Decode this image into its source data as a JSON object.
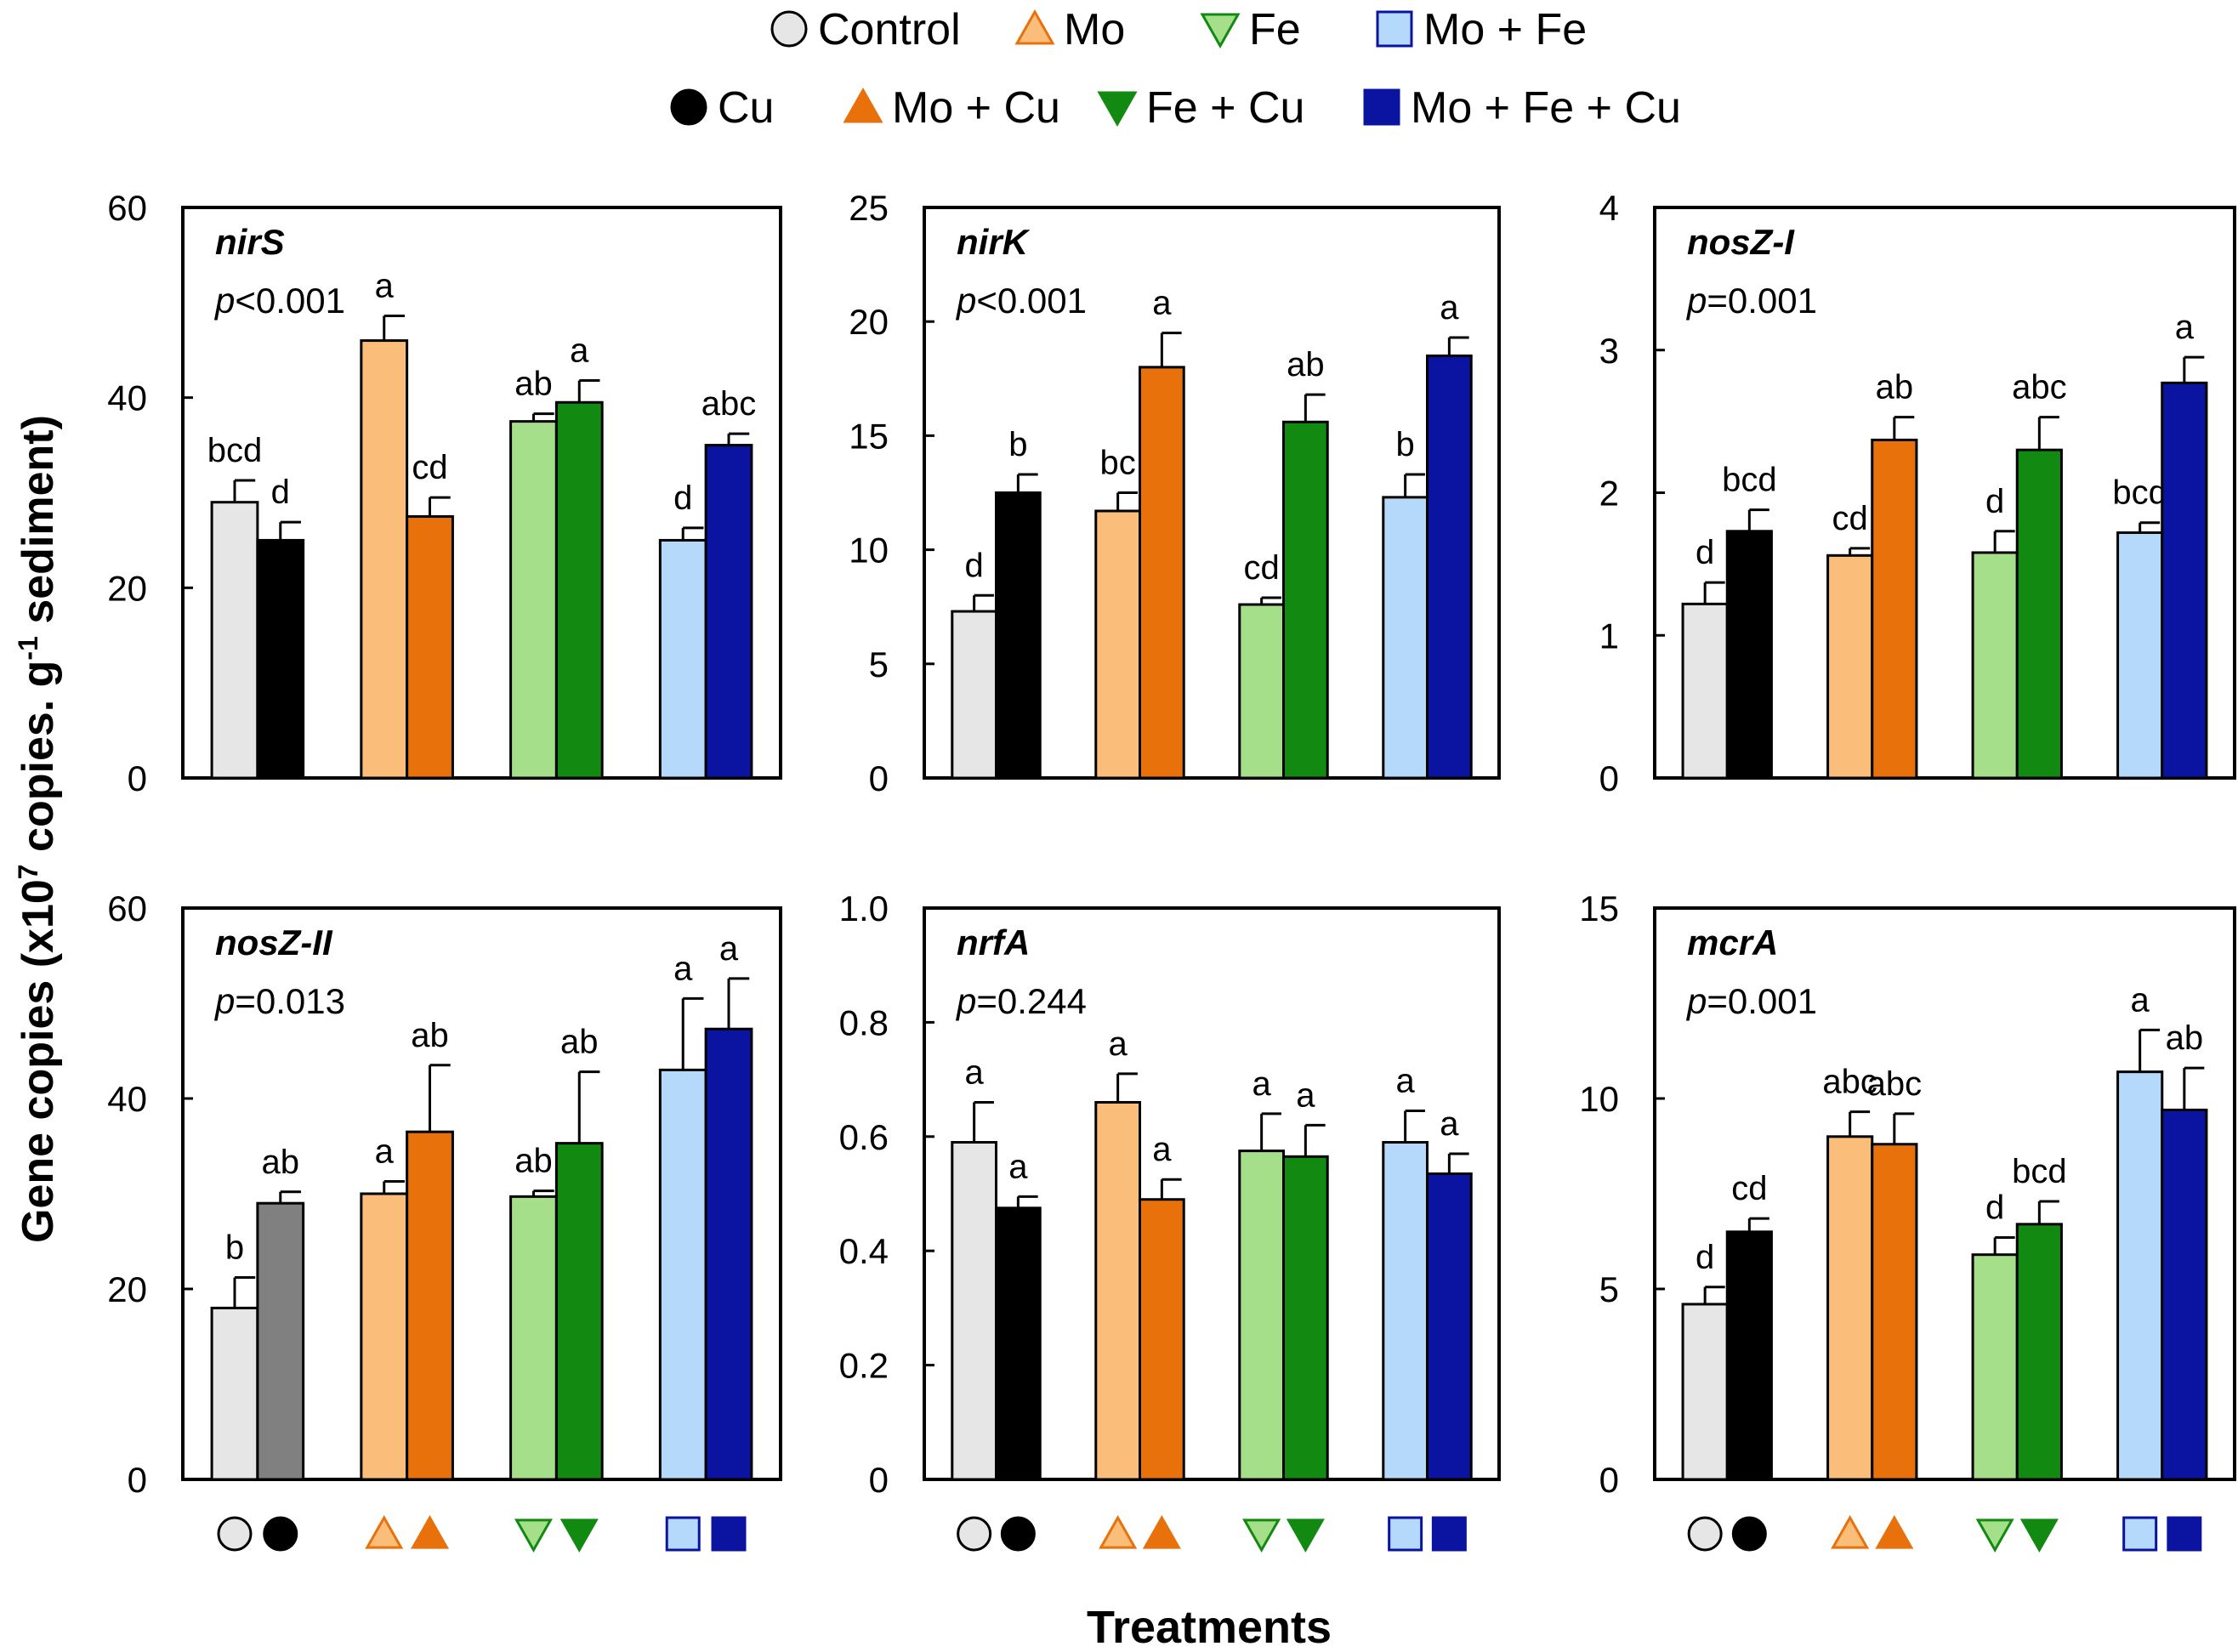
{
  "legend": {
    "rows": [
      [
        {
          "label": "Control",
          "marker": "circle-open",
          "color": "#e6e6e6",
          "edge": "#000000"
        },
        {
          "label": "Mo",
          "marker": "triangle-up-open",
          "color": "#fbbd7a",
          "edge": "#e8710c"
        },
        {
          "label": "Fe",
          "marker": "triangle-down-open",
          "color": "#a6df89",
          "edge": "#128a12"
        },
        {
          "label": "Mo + Fe",
          "marker": "square-open",
          "color": "#b5d9fb",
          "edge": "#0b14a0"
        }
      ],
      [
        {
          "label": "Cu",
          "marker": "circle-filled",
          "color": "#000000",
          "edge": "#000000"
        },
        {
          "label": "Mo + Cu",
          "marker": "triangle-up-filled",
          "color": "#e8710c",
          "edge": "#e8710c"
        },
        {
          "label": "Fe + Cu",
          "marker": "triangle-down-filled",
          "color": "#128a12",
          "edge": "#128a12"
        },
        {
          "label": "Mo + Fe + Cu",
          "marker": "square-filled",
          "color": "#0b14a0",
          "edge": "#0b14a0"
        }
      ]
    ]
  },
  "axes": {
    "ylabel_main": "Gene copies (x10",
    "ylabel_sup": "7",
    "ylabel_mid": " copies. g",
    "ylabel_sup2": "-1",
    "ylabel_end": " sediment)",
    "xlabel": "Treatments"
  },
  "colors": {
    "control": "#e6e6e6",
    "cu": "#000000",
    "cu_nosZII": "#808080",
    "mo": "#fbbd7a",
    "mocu": "#e8710c",
    "fe": "#a6df89",
    "fecu": "#128a12",
    "mofe": "#b5d9fb",
    "mofecu": "#0b14a0"
  },
  "chart_data": [
    {
      "type": "bar",
      "gene": "nirS",
      "pvalue_prefix": "p",
      "pvalue_rest": "<0.001",
      "ylim": [
        0,
        60
      ],
      "yticks": [
        0,
        20,
        40,
        60
      ],
      "ytick_labels": [
        "0",
        "20",
        "40",
        "60"
      ],
      "categories": [
        "Control",
        "Cu",
        "Mo",
        "Mo + Cu",
        "Fe",
        "Fe + Cu",
        "Mo + Fe",
        "Mo + Fe + Cu"
      ],
      "values": [
        29,
        25,
        46,
        27.5,
        37.5,
        39.5,
        25,
        35
      ],
      "errors": [
        2.3,
        1.9,
        2.6,
        2.0,
        0.8,
        2.3,
        1.3,
        1.2
      ],
      "letters": [
        "bcd",
        "d",
        "a",
        "cd",
        "ab",
        "a",
        "d",
        "abc"
      ],
      "colors": [
        "#e6e6e6",
        "#000000",
        "#fbbd7a",
        "#e8710c",
        "#a6df89",
        "#128a12",
        "#b5d9fb",
        "#0b14a0"
      ]
    },
    {
      "type": "bar",
      "gene": "nirK",
      "pvalue_prefix": "p",
      "pvalue_rest": "<0.001",
      "ylim": [
        0,
        25
      ],
      "yticks": [
        0,
        5,
        10,
        15,
        20,
        25
      ],
      "ytick_labels": [
        "0",
        "5",
        "10",
        "15",
        "20",
        "25"
      ],
      "categories": [
        "Control",
        "Cu",
        "Mo",
        "Mo + Cu",
        "Fe",
        "Fe + Cu",
        "Mo + Fe",
        "Mo + Fe + Cu"
      ],
      "values": [
        7.3,
        12.5,
        11.7,
        18,
        7.6,
        15.6,
        12.3,
        18.5
      ],
      "errors": [
        0.7,
        0.8,
        0.8,
        1.5,
        0.3,
        1.2,
        1.0,
        0.8
      ],
      "letters": [
        "d",
        "b",
        "bc",
        "a",
        "cd",
        "ab",
        "b",
        "a"
      ],
      "colors": [
        "#e6e6e6",
        "#000000",
        "#fbbd7a",
        "#e8710c",
        "#a6df89",
        "#128a12",
        "#b5d9fb",
        "#0b14a0"
      ]
    },
    {
      "type": "bar",
      "gene": "nosZ-I",
      "pvalue_prefix": "p",
      "pvalue_rest": "=0.001",
      "ylim": [
        0,
        4
      ],
      "yticks": [
        0,
        1,
        2,
        3,
        4
      ],
      "ytick_labels": [
        "0",
        "1",
        "2",
        "3",
        "4"
      ],
      "categories": [
        "Control",
        "Cu",
        "Mo",
        "Mo + Cu",
        "Fe",
        "Fe + Cu",
        "Mo + Fe",
        "Mo + Fe + Cu"
      ],
      "values": [
        1.22,
        1.73,
        1.56,
        2.37,
        1.58,
        2.3,
        1.72,
        2.77
      ],
      "errors": [
        0.15,
        0.15,
        0.05,
        0.16,
        0.15,
        0.23,
        0.07,
        0.18
      ],
      "letters": [
        "d",
        "bcd",
        "cd",
        "ab",
        "d",
        "abc",
        "bcd",
        "a"
      ],
      "colors": [
        "#e6e6e6",
        "#000000",
        "#fbbd7a",
        "#e8710c",
        "#a6df89",
        "#128a12",
        "#b5d9fb",
        "#0b14a0"
      ]
    },
    {
      "type": "bar",
      "gene": "nosZ-II",
      "pvalue_prefix": "p",
      "pvalue_rest": "=0.013",
      "ylim": [
        0,
        60
      ],
      "yticks": [
        0,
        20,
        40,
        60
      ],
      "ytick_labels": [
        "0",
        "20",
        "40",
        "60"
      ],
      "categories": [
        "Control",
        "Cu",
        "Mo",
        "Mo + Cu",
        "Fe",
        "Fe + Cu",
        "Mo + Fe",
        "Mo + Fe + Cu"
      ],
      "values": [
        18,
        29,
        30,
        36.5,
        29.7,
        35.3,
        43,
        47.3
      ],
      "errors": [
        3.2,
        1.2,
        1.3,
        7.0,
        0.6,
        7.5,
        7.5,
        5.3
      ],
      "letters": [
        "b",
        "ab",
        "a",
        "ab",
        "ab",
        "ab",
        "a",
        "a"
      ],
      "colors": [
        "#e6e6e6",
        "#808080",
        "#fbbd7a",
        "#e8710c",
        "#a6df89",
        "#128a12",
        "#b5d9fb",
        "#0b14a0"
      ]
    },
    {
      "type": "bar",
      "gene": "nrfA",
      "pvalue_prefix": "p",
      "pvalue_rest": "=0.244",
      "ylim": [
        0,
        1.0
      ],
      "yticks": [
        0,
        0.2,
        0.4,
        0.6,
        0.8,
        1.0
      ],
      "ytick_labels": [
        "0",
        "0.2",
        "0.4",
        "0.6",
        "0.8",
        "1.0"
      ],
      "categories": [
        "Control",
        "Cu",
        "Mo",
        "Mo + Cu",
        "Fe",
        "Fe + Cu",
        "Mo + Fe",
        "Mo + Fe + Cu"
      ],
      "values": [
        0.59,
        0.475,
        0.66,
        0.49,
        0.575,
        0.565,
        0.59,
        0.535
      ],
      "errors": [
        0.07,
        0.02,
        0.05,
        0.035,
        0.065,
        0.055,
        0.055,
        0.035
      ],
      "letters": [
        "a",
        "a",
        "a",
        "a",
        "a",
        "a",
        "a",
        "a"
      ],
      "colors": [
        "#e6e6e6",
        "#000000",
        "#fbbd7a",
        "#e8710c",
        "#a6df89",
        "#128a12",
        "#b5d9fb",
        "#0b14a0"
      ]
    },
    {
      "type": "bar",
      "gene": "mcrA",
      "pvalue_prefix": "p",
      "pvalue_rest": "=0.001",
      "ylim": [
        0,
        15
      ],
      "yticks": [
        0,
        5,
        10,
        15
      ],
      "ytick_labels": [
        "0",
        "5",
        "10",
        "15"
      ],
      "categories": [
        "Control",
        "Cu",
        "Mo",
        "Mo + Cu",
        "Fe",
        "Fe + Cu",
        "Mo + Fe",
        "Mo + Fe + Cu"
      ],
      "values": [
        4.6,
        6.5,
        9.0,
        8.8,
        5.9,
        6.7,
        10.7,
        9.7
      ],
      "errors": [
        0.45,
        0.35,
        0.65,
        0.8,
        0.45,
        0.6,
        1.1,
        1.1
      ],
      "letters": [
        "d",
        "cd",
        "abc",
        "abc",
        "d",
        "bcd",
        "a",
        "ab"
      ],
      "colors": [
        "#e6e6e6",
        "#000000",
        "#fbbd7a",
        "#e8710c",
        "#a6df89",
        "#128a12",
        "#b5d9fb",
        "#0b14a0"
      ]
    }
  ]
}
